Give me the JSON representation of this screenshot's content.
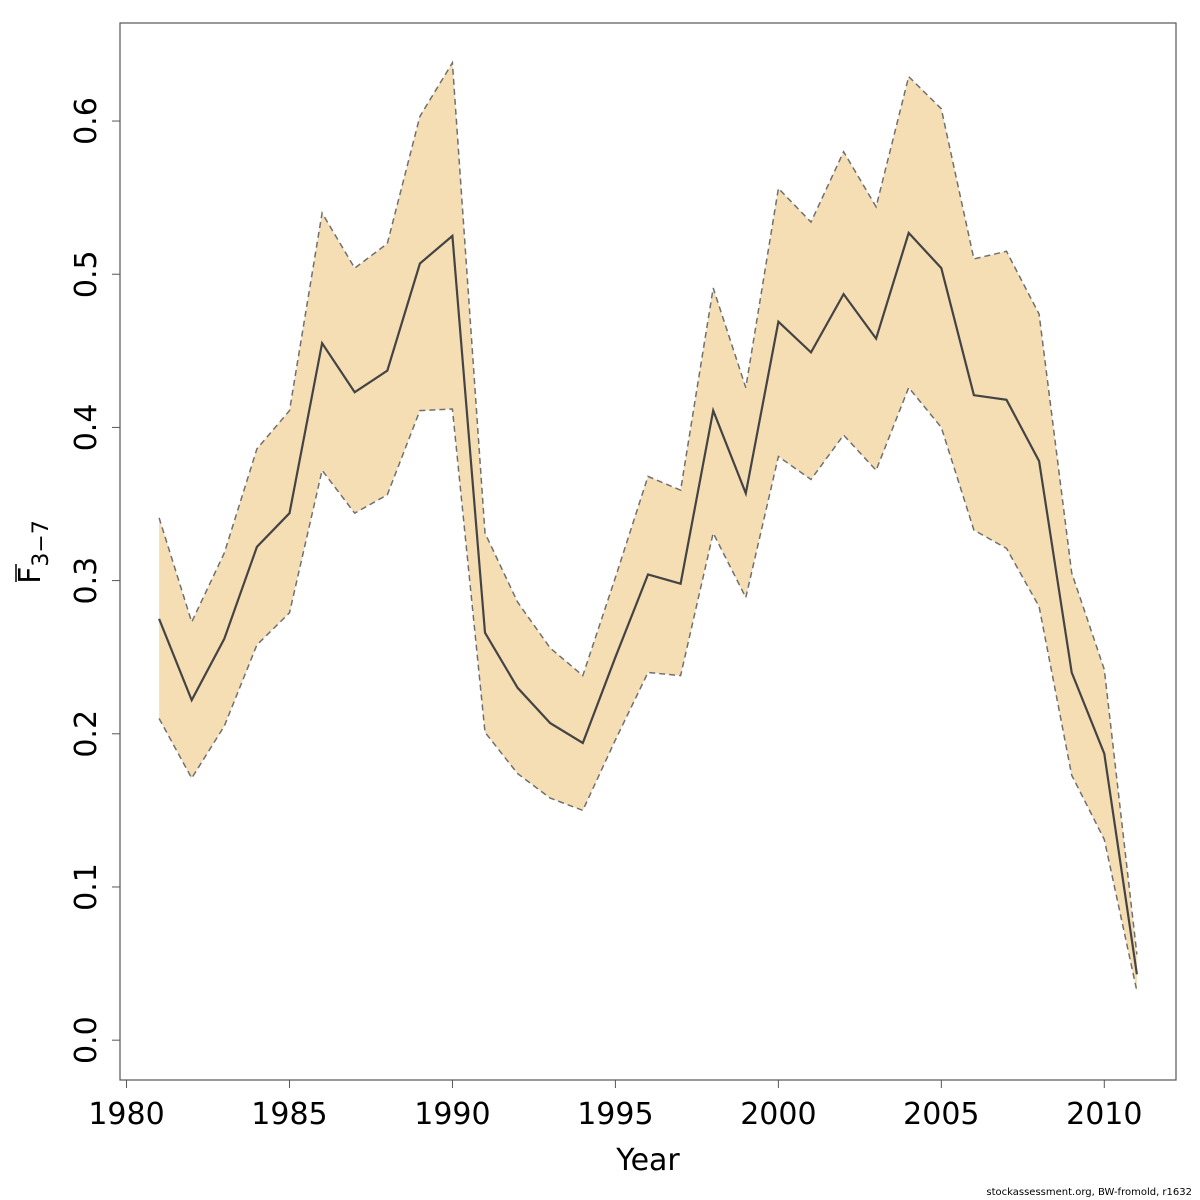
{
  "chart_data": {
    "type": "line",
    "title": "",
    "xlabel": "Year",
    "ylabel_main": "F",
    "ylabel_sub": "3−7",
    "xlim": [
      1979.8,
      2012.2
    ],
    "ylim": [
      -0.026,
      0.664
    ],
    "x_ticks": [
      1980,
      1985,
      1990,
      1995,
      2000,
      2005,
      2010
    ],
    "y_ticks": [
      0.0,
      0.1,
      0.2,
      0.3,
      0.4,
      0.5,
      0.6
    ],
    "y_tick_labels": [
      "0.0",
      "0.1",
      "0.2",
      "0.3",
      "0.4",
      "0.5",
      "0.6"
    ],
    "grid": false,
    "band_color": "#f5deb3",
    "line_color": "#444444",
    "x": [
      1981,
      1982,
      1983,
      1984,
      1985,
      1986,
      1987,
      1988,
      1989,
      1990,
      1991,
      1992,
      1993,
      1994,
      1995,
      1996,
      1997,
      1998,
      1999,
      2000,
      2001,
      2002,
      2003,
      2004,
      2005,
      2006,
      2007,
      2008,
      2009,
      2010,
      2011
    ],
    "series": [
      {
        "values": [
          0.275,
          0.222,
          0.262,
          0.322,
          0.344,
          0.455,
          0.423,
          0.437,
          0.507,
          0.525,
          0.266,
          0.23,
          0.207,
          0.194,
          0.25,
          0.304,
          0.298,
          0.411,
          0.357,
          0.469,
          0.449,
          0.487,
          0.458,
          0.527,
          0.504,
          0.421,
          0.418,
          0.378,
          0.24,
          0.187,
          0.043
        ]
      },
      {
        "values": [
          0.21,
          0.171,
          0.205,
          0.258,
          0.279,
          0.372,
          0.344,
          0.356,
          0.411,
          0.412,
          0.201,
          0.174,
          0.158,
          0.15,
          0.196,
          0.24,
          0.238,
          0.331,
          0.289,
          0.381,
          0.366,
          0.395,
          0.372,
          0.426,
          0.4,
          0.333,
          0.321,
          0.283,
          0.173,
          0.131,
          0.032
        ]
      },
      {
        "values": [
          0.341,
          0.273,
          0.318,
          0.386,
          0.411,
          0.54,
          0.504,
          0.52,
          0.603,
          0.638,
          0.331,
          0.286,
          0.256,
          0.238,
          0.302,
          0.368,
          0.359,
          0.491,
          0.426,
          0.556,
          0.534,
          0.58,
          0.544,
          0.629,
          0.608,
          0.51,
          0.515,
          0.474,
          0.305,
          0.242,
          0.056
        ]
      }
    ]
  },
  "footer": "stockassessment.org, BW-fromold, r1632"
}
